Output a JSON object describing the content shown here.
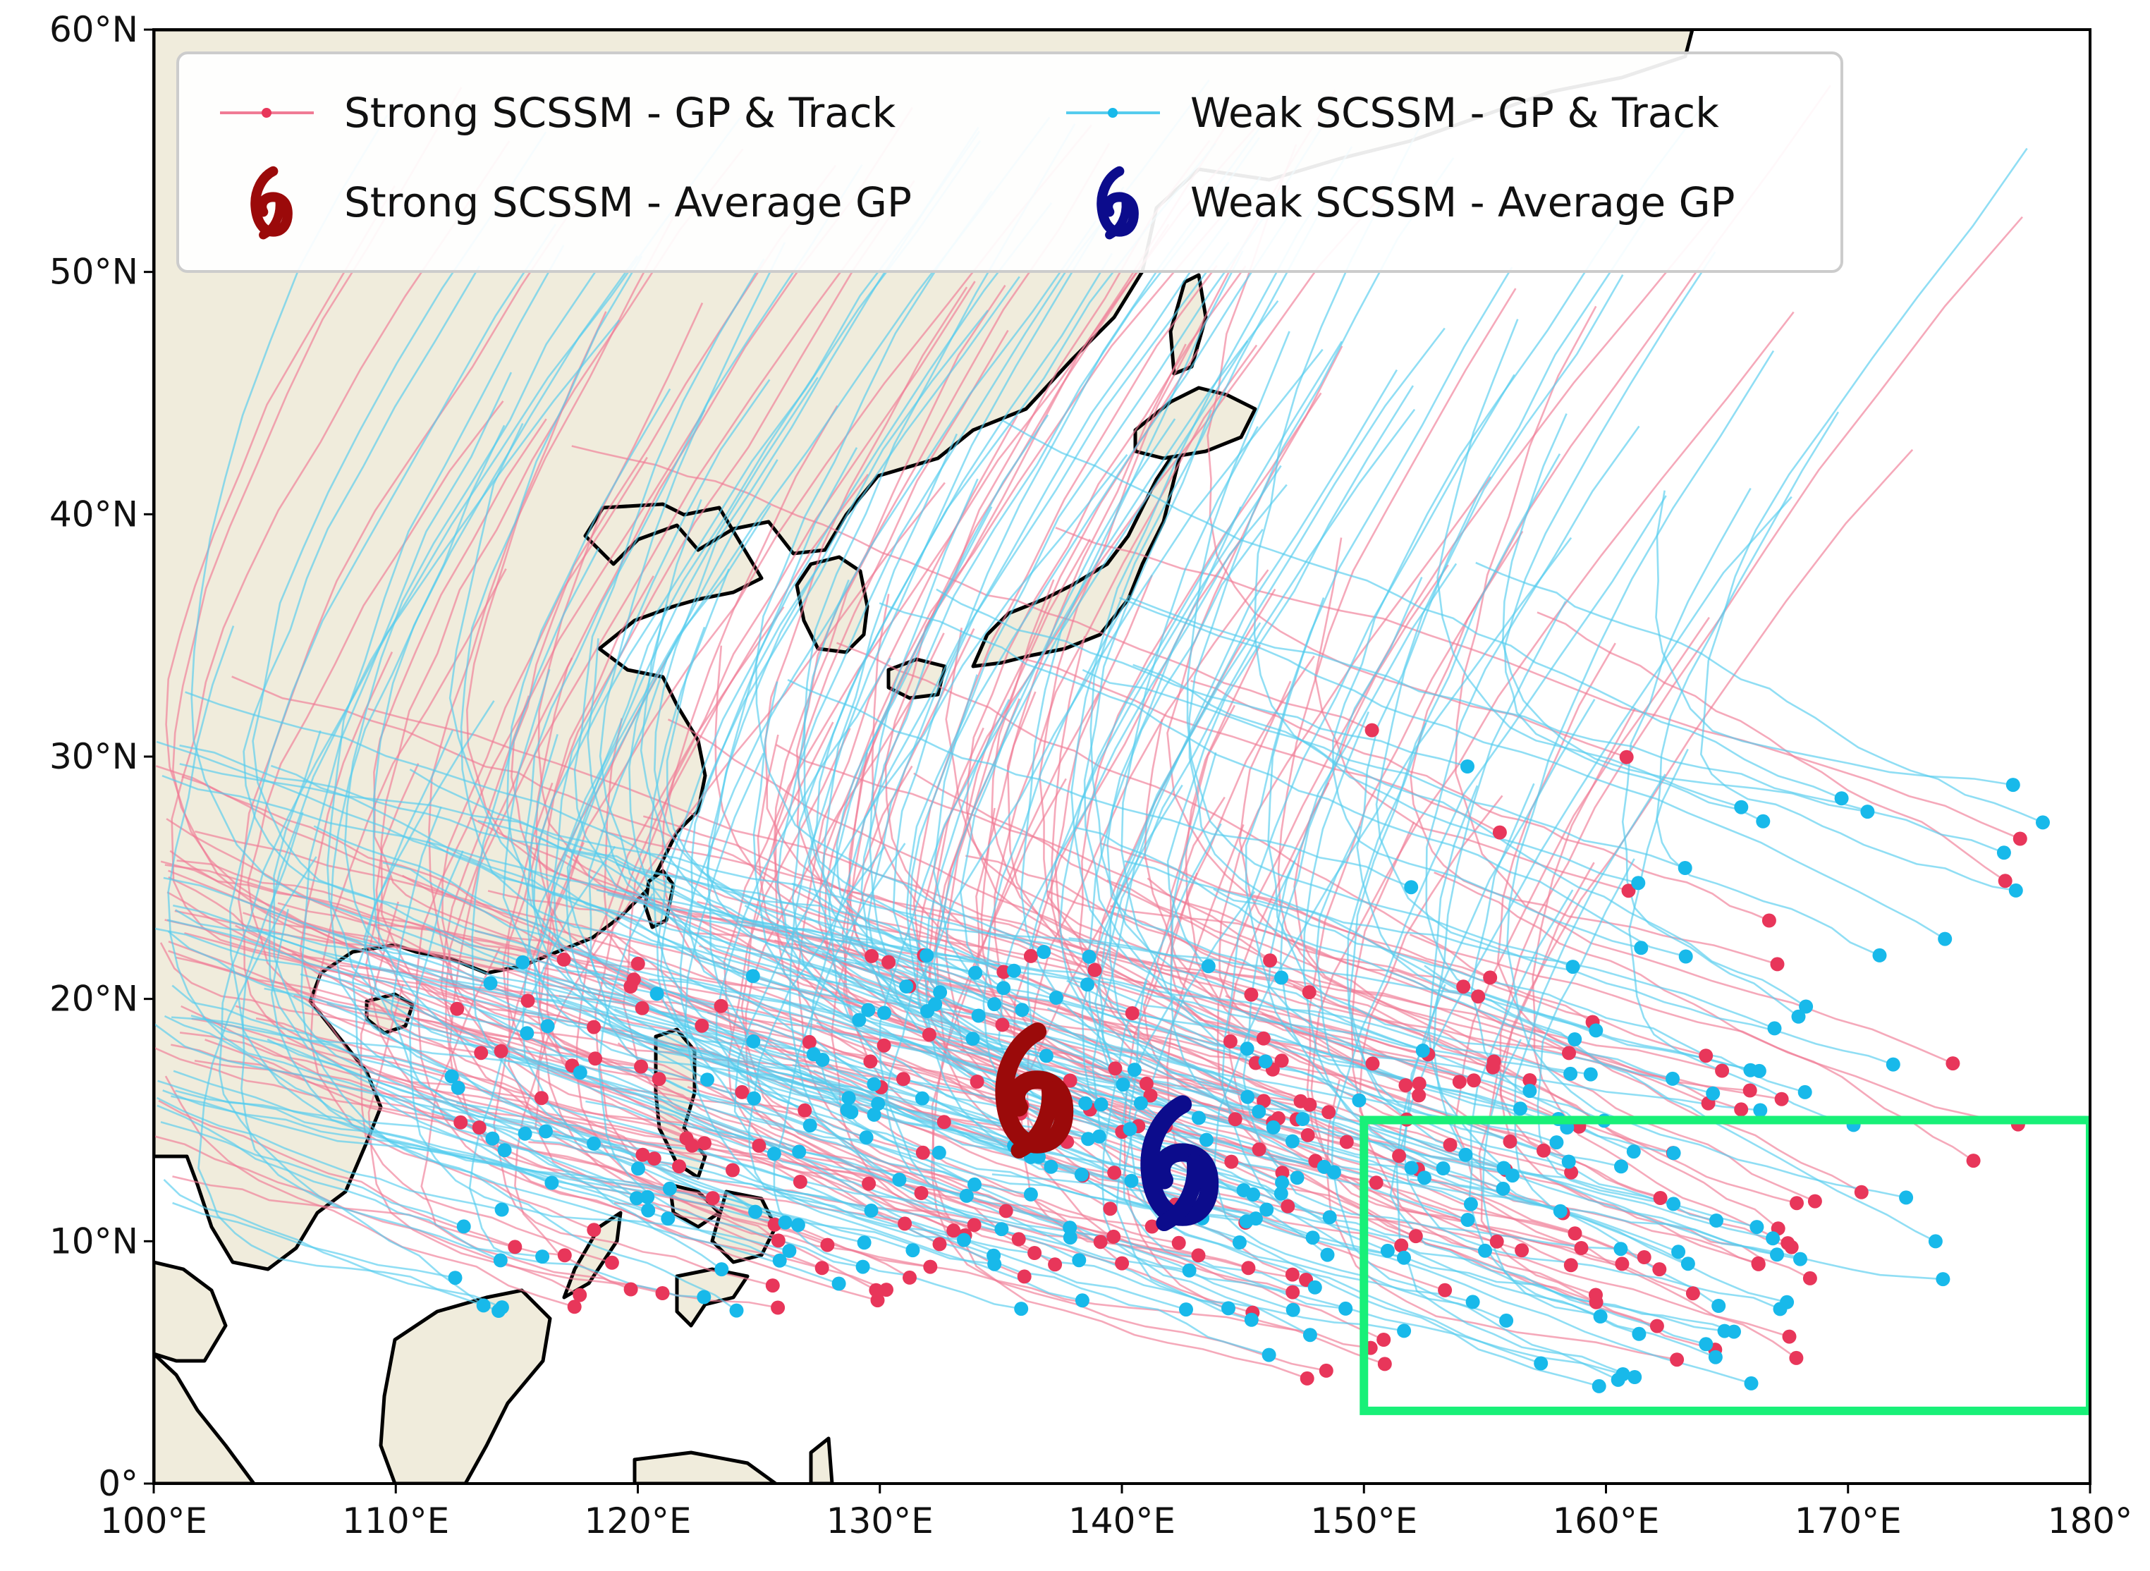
{
  "map": {
    "extent": {
      "lon": [
        100,
        180
      ],
      "lat": [
        0,
        60
      ]
    },
    "x_ticks": [
      {
        "lon": 100,
        "label": "100°E"
      },
      {
        "lon": 110,
        "label": "110°E"
      },
      {
        "lon": 120,
        "label": "120°E"
      },
      {
        "lon": 130,
        "label": "130°E"
      },
      {
        "lon": 140,
        "label": "140°E"
      },
      {
        "lon": 150,
        "label": "150°E"
      },
      {
        "lon": 160,
        "label": "160°E"
      },
      {
        "lon": 170,
        "label": "170°E"
      },
      {
        "lon": 180,
        "label": "180°"
      }
    ],
    "y_ticks": [
      {
        "lat": 0,
        "label": "0°"
      },
      {
        "lat": 10,
        "label": "10°N"
      },
      {
        "lat": 20,
        "label": "20°N"
      },
      {
        "lat": 30,
        "label": "30°N"
      },
      {
        "lat": 40,
        "label": "40°N"
      },
      {
        "lat": 50,
        "label": "50°N"
      },
      {
        "lat": 60,
        "label": "60°N"
      }
    ],
    "colors": {
      "land": "#f0ecdc",
      "coast": "#000000",
      "strong_track": "#f07b95",
      "strong_point": "#e8365a",
      "weak_track": "#55ccee",
      "weak_point": "#18b9ea",
      "strong_avg": "#9b0a0a",
      "weak_avg": "#0c0c8c",
      "box": "#18f078"
    },
    "region_box": {
      "lon": [
        150,
        180
      ],
      "lat": [
        3,
        15
      ]
    },
    "average_gp": {
      "strong": {
        "lon": 136.0,
        "lat": 16.2
      },
      "weak": {
        "lon": 142.0,
        "lat": 13.2
      }
    }
  },
  "legend": {
    "strong_gp_track": "Strong SCSSM - GP & Track",
    "weak_gp_track": "Weak SCSSM  - GP & Track",
    "strong_avg_gp": "Strong SCSSM  - Average GP",
    "weak_avg_gp": "Weak SCSSM  - Average GP"
  }
}
